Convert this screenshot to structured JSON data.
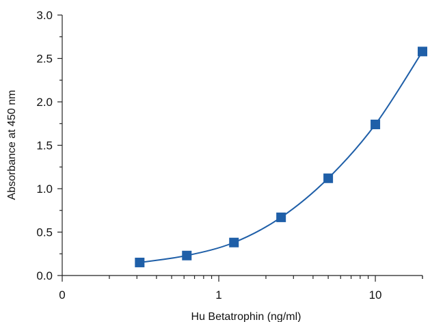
{
  "chart_data": {
    "type": "scatter",
    "title": "",
    "xlabel": "Hu Betatrophin (ng/ml)",
    "ylabel": "Absorbance at 450 nm",
    "x_scale": "log",
    "xlim": [
      0.1,
      20
    ],
    "ylim": [
      0,
      3.0
    ],
    "x_tick_labels": [
      {
        "value": 0.1,
        "label": "0"
      },
      {
        "value": 1,
        "label": "1"
      },
      {
        "value": 10,
        "label": "10"
      }
    ],
    "y_ticks": [
      "0.0",
      "0.5",
      "1.0",
      "1.5",
      "2.0",
      "2.5",
      "3.0"
    ],
    "grid": false,
    "series": [
      {
        "color": "#1f5fa8",
        "marker": "square",
        "fit_line": true,
        "x": [
          0.3125,
          0.625,
          1.25,
          2.5,
          5,
          10,
          20
        ],
        "y": [
          0.15,
          0.23,
          0.38,
          0.67,
          1.12,
          1.74,
          2.58
        ]
      }
    ]
  }
}
